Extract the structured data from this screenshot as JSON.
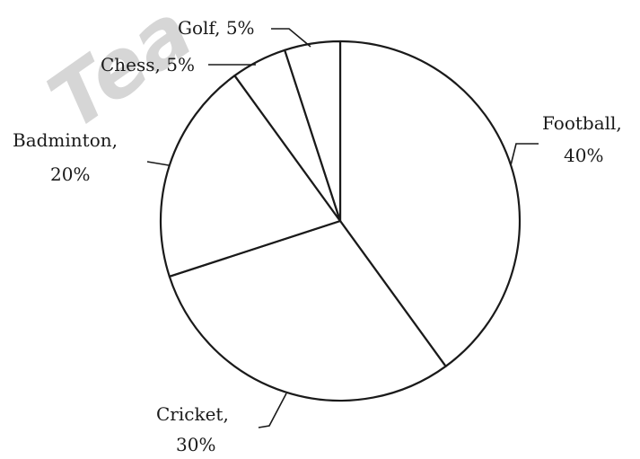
{
  "watermark": "Tea",
  "chart_data": {
    "type": "pie",
    "title": "",
    "slices": [
      {
        "label": "Football,",
        "pct_text": "40%",
        "value": 40
      },
      {
        "label": "Cricket,",
        "pct_text": "30%",
        "value": 30
      },
      {
        "label": "Badminton,",
        "pct_text": "20%",
        "value": 20
      },
      {
        "label": "Chess, 5%",
        "pct_text": "",
        "value": 5
      },
      {
        "label": "Golf, 5%",
        "pct_text": "",
        "value": 5
      }
    ],
    "start_angle_deg": 0,
    "direction": "clockwise",
    "legend": "none",
    "colors": {
      "fill": "#ffffff",
      "stroke": "#1a1a1a"
    }
  }
}
